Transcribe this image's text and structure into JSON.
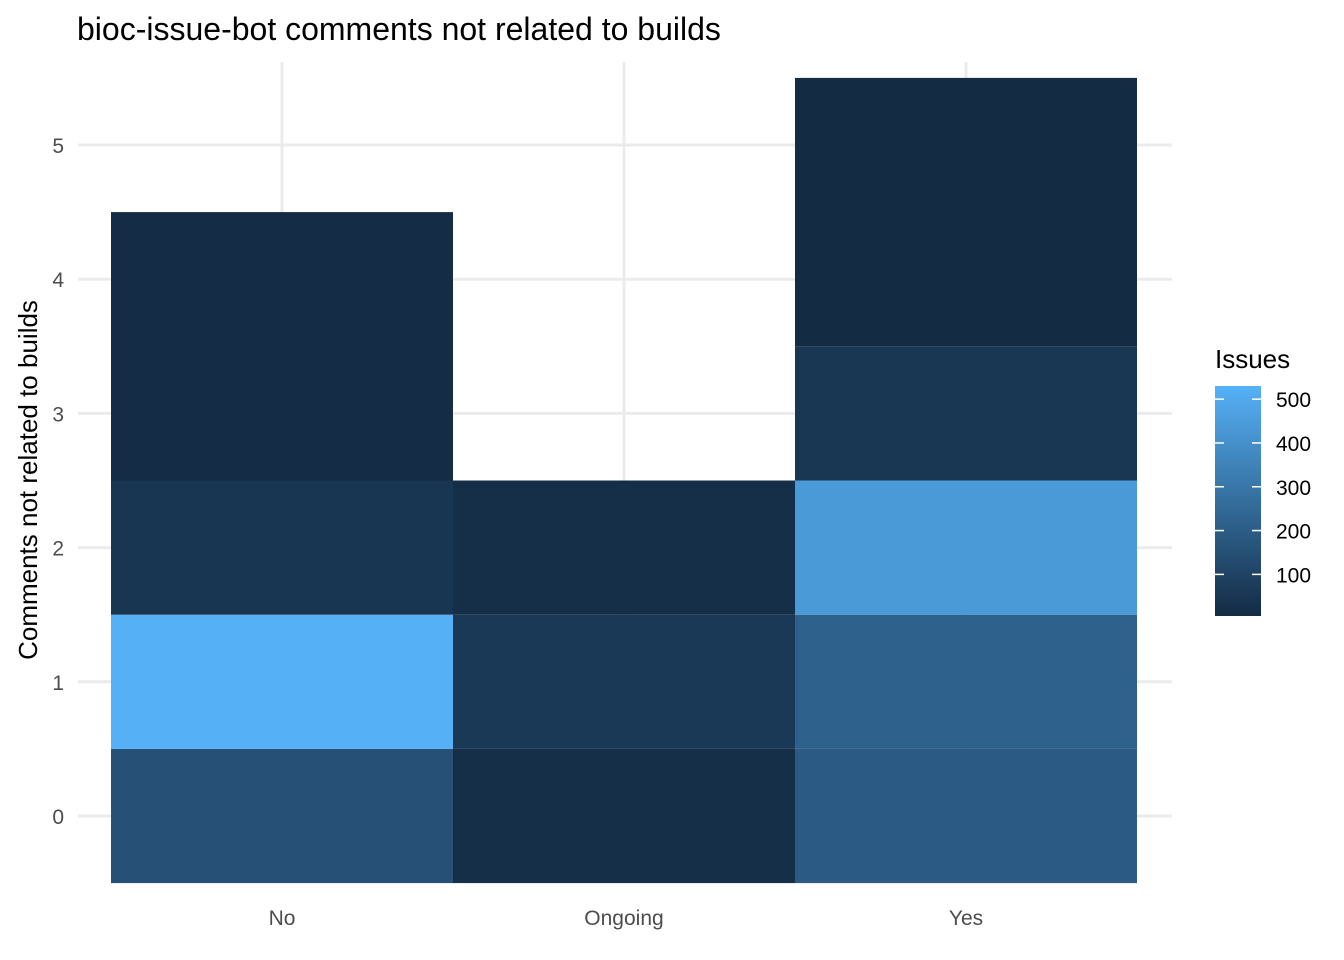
{
  "chart_data": {
    "type": "heatmap",
    "title": "bioc-issue-bot comments not related to builds",
    "xlabel": "",
    "ylabel": "Comments not related to builds",
    "categories": [
      "No",
      "Ongoing",
      "Yes"
    ],
    "y_ticks": [
      0,
      1,
      2,
      3,
      4,
      5
    ],
    "ylim": [
      -0.5,
      5.5
    ],
    "grid": true,
    "legend": {
      "title": "Issues",
      "placement": "right",
      "ticks": [
        100,
        200,
        300,
        400,
        500
      ],
      "range": [
        5,
        530
      ],
      "color_low": "#132b43",
      "color_high": "#56b1f7"
    },
    "cells": [
      {
        "x": "No",
        "y_from": -0.5,
        "y_to": 0.5,
        "value": 150
      },
      {
        "x": "No",
        "y_from": 0.5,
        "y_to": 1.5,
        "value": 525
      },
      {
        "x": "No",
        "y_from": 1.5,
        "y_to": 2.5,
        "value": 45
      },
      {
        "x": "No",
        "y_from": 2.5,
        "y_to": 4.5,
        "value": 10
      },
      {
        "x": "Ongoing",
        "y_from": -0.5,
        "y_to": 0.5,
        "value": 20
      },
      {
        "x": "Ongoing",
        "y_from": 0.5,
        "y_to": 1.5,
        "value": 60
      },
      {
        "x": "Ongoing",
        "y_from": 1.5,
        "y_to": 2.5,
        "value": 20
      },
      {
        "x": "Yes",
        "y_from": -0.5,
        "y_to": 0.5,
        "value": 195
      },
      {
        "x": "Yes",
        "y_from": 0.5,
        "y_to": 1.5,
        "value": 215
      },
      {
        "x": "Yes",
        "y_from": 1.5,
        "y_to": 2.5,
        "value": 440
      },
      {
        "x": "Yes",
        "y_from": 2.5,
        "y_to": 3.5,
        "value": 50
      },
      {
        "x": "Yes",
        "y_from": 3.5,
        "y_to": 5.5,
        "value": 8
      }
    ]
  }
}
